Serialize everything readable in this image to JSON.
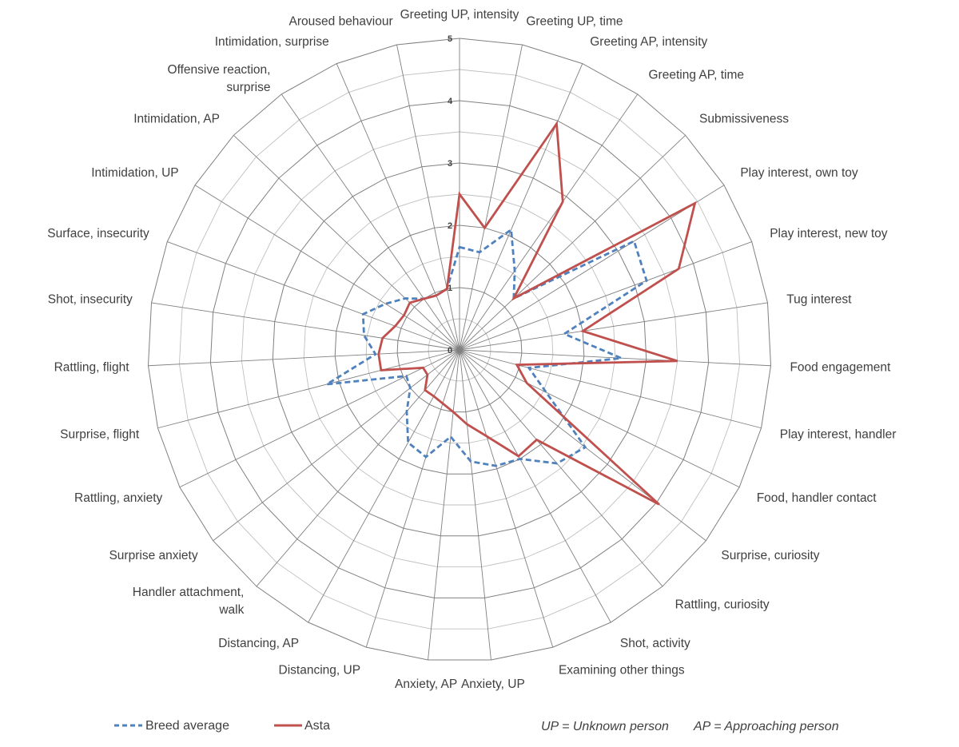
{
  "chart_data": {
    "type": "radar",
    "categories": [
      "Greeting UP, intensity",
      "Greeting UP, time",
      "Greeting AP, intensity",
      "Greeting AP, time",
      "Submissiveness",
      "Play interest, own toy",
      "Play interest, new toy",
      "Tug interest",
      "Food engagement",
      "Play interest, handler",
      "Food, handler contact",
      "Surprise, curiosity",
      "Rattling, curiosity",
      "Shot, activity",
      "Examining other things",
      "Anxiety, UP",
      "Anxiety, AP",
      "Distancing, UP",
      "Distancing, AP",
      "Handler attachment, walk",
      "Surprise anxiety",
      "Rattling, anxiety",
      "Surprise, flight",
      "Rattling, flight",
      "Shot, insecurity",
      "Surface, insecurity",
      "Intimidation, UP",
      "Intimidation, AP",
      "Offensive reaction, surprise",
      "Intimidation, surprise",
      "Aroused behaviour"
    ],
    "series": [
      {
        "name": "Breed average",
        "style": "dashed",
        "color": "#4F81BD",
        "values": [
          1.65,
          1.6,
          2.1,
          1.55,
          1.2,
          3.3,
          3.2,
          1.7,
          2.6,
          1.15,
          1.55,
          2.55,
          2.4,
          2.0,
          1.95,
          1.8,
          1.4,
          1.8,
          1.7,
          1.3,
          1.0,
          0.95,
          2.2,
          1.35,
          1.55,
          1.65,
          1.4,
          1.2,
          1.0,
          0.95,
          1.0
        ]
      },
      {
        "name": "Asta",
        "style": "solid",
        "color": "#C0504D",
        "values": [
          2.5,
          2.0,
          3.95,
          2.9,
          1.2,
          4.45,
          3.75,
          2.0,
          3.5,
          0.95,
          1.2,
          4.05,
          1.9,
          1.95,
          1.45,
          1.2,
          1.0,
          0.9,
          0.85,
          0.85,
          0.65,
          0.65,
          1.3,
          1.3,
          1.25,
          1.1,
          1.05,
          1.1,
          1.0,
          0.95,
          1.0
        ]
      }
    ],
    "rlim": [
      0,
      5
    ],
    "ticks": [
      "0",
      "1",
      "2",
      "3",
      "4",
      "5"
    ],
    "grid": true,
    "legend_position": "bottom-left"
  },
  "notes": {
    "up": "UP = Unknown person",
    "ap": "AP = Approaching person"
  },
  "colors": {
    "grid_major": "#808080",
    "grid_minor": "#bfbfbf",
    "text": "#404040"
  }
}
